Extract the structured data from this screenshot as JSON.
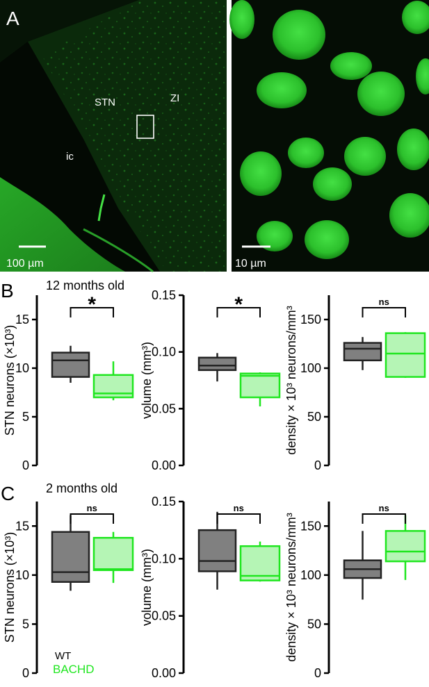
{
  "panel_a": {
    "label": "A",
    "left": {
      "labels": {
        "stn": "STN",
        "zi": "ZI",
        "ic": "ic"
      },
      "scale_bar": "100 µm"
    },
    "right": {
      "scale_bar": "10 µm"
    }
  },
  "panel_b": {
    "label": "B",
    "subtitle": "12 months old"
  },
  "panel_c": {
    "label": "C",
    "subtitle": "2 months old"
  },
  "legend": [
    {
      "name": "WT",
      "color": "#000000"
    },
    {
      "name": "BACHD",
      "color": "#1fe61f"
    }
  ],
  "colors": {
    "wt_fill": "#808080",
    "wt_stroke": "#222222",
    "bachd_fill": "#b5f5b5",
    "bachd_stroke": "#1fe61f",
    "micro_bg": "#050a05",
    "micro_green": "#2fd52f"
  },
  "chart_data": [
    {
      "type": "box",
      "ylabel": "STN neurons (×10³)",
      "ylim": [
        0,
        17.5
      ],
      "yticks": [
        0,
        5,
        10,
        15
      ],
      "tick_labels": [
        "0",
        "5",
        "10",
        "15"
      ],
      "categories": [
        "WT",
        "BACHD"
      ],
      "series": [
        {
          "name": "WT",
          "min": 8.5,
          "q1": 9.1,
          "median": 10.8,
          "q3": 11.6,
          "max": 12.3
        },
        {
          "name": "BACHD",
          "min": 6.7,
          "q1": 7.0,
          "median": 7.4,
          "q3": 9.3,
          "max": 10.7
        }
      ],
      "significance": "*"
    },
    {
      "type": "box",
      "ylabel": "volume (mm³)",
      "ylim": [
        0,
        0.15
      ],
      "yticks": [
        0,
        0.05,
        0.1,
        0.15
      ],
      "tick_labels": [
        "0.00",
        "0.05",
        "0.10",
        "0.15"
      ],
      "categories": [
        "WT",
        "BACHD"
      ],
      "series": [
        {
          "name": "WT",
          "min": 0.074,
          "q1": 0.084,
          "median": 0.088,
          "q3": 0.095,
          "max": 0.099
        },
        {
          "name": "BACHD",
          "min": 0.052,
          "q1": 0.06,
          "median": 0.079,
          "q3": 0.081,
          "max": 0.082
        }
      ],
      "significance": "*"
    },
    {
      "type": "box",
      "ylabel": "density × 10³ neurons/mm³",
      "ylim": [
        0,
        175
      ],
      "yticks": [
        0,
        50,
        100,
        150
      ],
      "tick_labels": [
        "0",
        "50",
        "100",
        "150"
      ],
      "categories": [
        "WT",
        "BACHD"
      ],
      "series": [
        {
          "name": "WT",
          "min": 98,
          "q1": 108,
          "median": 120,
          "q3": 126,
          "max": 132
        },
        {
          "name": "BACHD",
          "min": 90,
          "q1": 91,
          "median": 115,
          "q3": 136,
          "max": 137
        }
      ],
      "significance": "ns"
    },
    {
      "type": "box",
      "ylabel": "STN neurons (×10³)",
      "ylim": [
        0,
        17.5
      ],
      "yticks": [
        0,
        5,
        10,
        15
      ],
      "tick_labels": [
        "0",
        "5",
        "10",
        "15"
      ],
      "categories": [
        "WT",
        "BACHD"
      ],
      "series": [
        {
          "name": "WT",
          "min": 8.4,
          "q1": 9.3,
          "median": 10.3,
          "q3": 14.4,
          "max": 16.1
        },
        {
          "name": "BACHD",
          "min": 9.2,
          "q1": 10.5,
          "median": 10.6,
          "q3": 13.8,
          "max": 14.4
        }
      ],
      "significance": "ns"
    },
    {
      "type": "box",
      "ylabel": "volume (mm³)",
      "ylim": [
        0,
        0.15
      ],
      "yticks": [
        0,
        0.05,
        0.1,
        0.15
      ],
      "tick_labels": [
        "0.00",
        "0.05",
        "0.10",
        "0.15"
      ],
      "categories": [
        "WT",
        "BACHD"
      ],
      "series": [
        {
          "name": "WT",
          "min": 0.073,
          "q1": 0.089,
          "median": 0.098,
          "q3": 0.125,
          "max": 0.141
        },
        {
          "name": "BACHD",
          "min": 0.08,
          "q1": 0.081,
          "median": 0.085,
          "q3": 0.111,
          "max": 0.115
        }
      ],
      "significance": "ns"
    },
    {
      "type": "box",
      "ylabel": "density × 10³ neurons/mm³",
      "ylim": [
        0,
        175
      ],
      "yticks": [
        0,
        50,
        100,
        150
      ],
      "tick_labels": [
        "0",
        "50",
        "100",
        "150"
      ],
      "categories": [
        "WT",
        "BACHD"
      ],
      "series": [
        {
          "name": "WT",
          "min": 75,
          "q1": 97,
          "median": 106,
          "q3": 115,
          "max": 145
        },
        {
          "name": "BACHD",
          "min": 95,
          "q1": 114,
          "median": 124,
          "q3": 145,
          "max": 161
        }
      ],
      "significance": "ns"
    }
  ]
}
